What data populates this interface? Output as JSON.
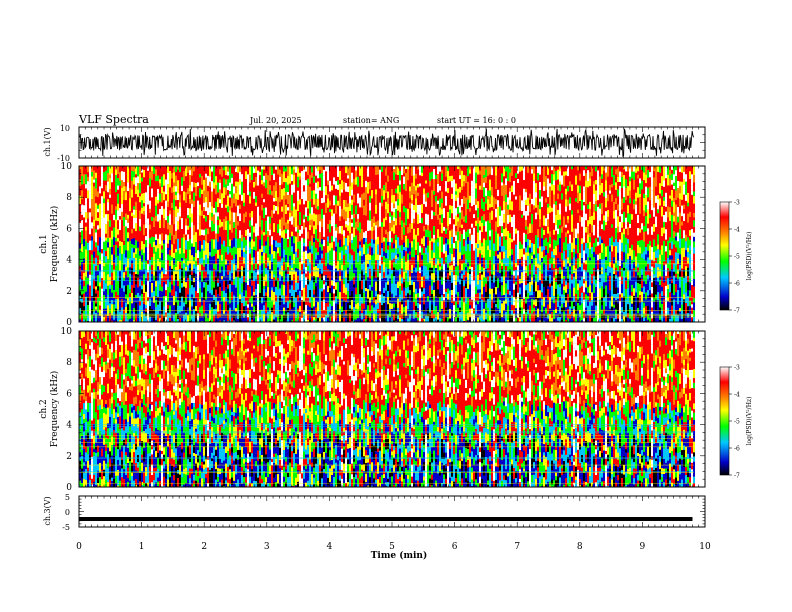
{
  "header": {
    "title": "VLF Spectra",
    "date": "Jul. 20, 2025",
    "station": "station= ANG",
    "start": "start UT =  16: 0 : 0"
  },
  "chart_data": [
    {
      "type": "line",
      "name": "ch1-waveform",
      "ylabel": "ch.1(V)",
      "ylim": [
        -10,
        10
      ],
      "yticks": [
        "10",
        "-10"
      ],
      "xlim": [
        0,
        10
      ],
      "description_values": "dense black oscillating waveform spanning approximately -5 to 5 V across 0-9.8 min"
    },
    {
      "type": "heatmap",
      "name": "ch1-spectrogram",
      "ylabel": "ch.1\nFrequency (kHz)",
      "ylim": [
        0,
        10
      ],
      "yticks": [
        "0",
        "2",
        "4",
        "6",
        "8",
        "10"
      ],
      "xlim": [
        0,
        10
      ],
      "colorbar": {
        "label": "log(PSD)(V²/Hz)",
        "range": [
          -7,
          -3
        ],
        "ticks": [
          "-3",
          "-4",
          "-5",
          "-6",
          "-7"
        ]
      }
    },
    {
      "type": "heatmap",
      "name": "ch2-spectrogram",
      "ylabel": "ch.2\nFrequency (kHz)",
      "ylim": [
        0,
        10
      ],
      "yticks": [
        "0",
        "2",
        "4",
        "6",
        "8",
        "10"
      ],
      "xlim": [
        0,
        10
      ],
      "colorbar": {
        "label": "log(PSD)(V²/Hz)",
        "range": [
          -7,
          -3
        ],
        "ticks": [
          "-3",
          "-4",
          "-5",
          "-6",
          "-7"
        ]
      }
    },
    {
      "type": "line",
      "name": "ch3-waveform",
      "ylabel": "ch.3(V)",
      "ylim": [
        -5,
        5
      ],
      "yticks": [
        "5",
        "0",
        "-5"
      ],
      "xlim": [
        0,
        10
      ],
      "x": [
        0,
        9.8
      ],
      "y": [
        -2.4,
        -2.4
      ]
    }
  ],
  "xaxis": {
    "label": "Time (min)",
    "ticks": [
      "0",
      "1",
      "2",
      "3",
      "4",
      "5",
      "6",
      "7",
      "8",
      "9",
      "10"
    ]
  },
  "colors": {
    "scale": [
      "#000000",
      "#0000c8",
      "#00c8ff",
      "#00ff00",
      "#ffff00",
      "#ff8000",
      "#ff0000",
      "#ffffff"
    ]
  }
}
